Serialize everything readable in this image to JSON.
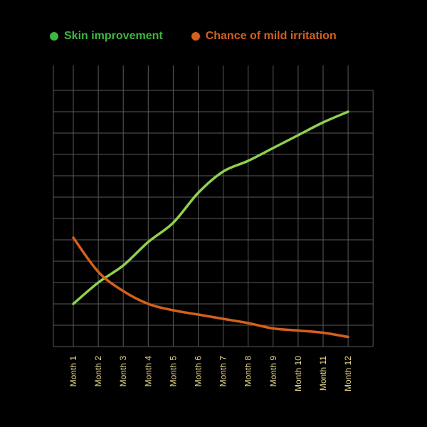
{
  "chart_data": {
    "type": "line",
    "categories": [
      "Month 1",
      "Month 2",
      "Month 3",
      "Month 4",
      "Month 5",
      "Month 6",
      "Month 7",
      "Month 8",
      "Month 9",
      "Month 10",
      "Month 11",
      "Month 12"
    ],
    "series": [
      {
        "name": "Skin improvement",
        "color": "#8fd14f",
        "legend_color": "#3cb83c",
        "values": [
          2.0,
          3.0,
          3.8,
          4.9,
          5.8,
          7.2,
          8.2,
          8.7,
          9.3,
          9.9,
          10.5,
          11.0
        ]
      },
      {
        "name": "Chance of mild irritation",
        "color": "#d4601c",
        "legend_color": "#d4601c",
        "values": [
          5.1,
          3.5,
          2.6,
          2.0,
          1.7,
          1.5,
          1.3,
          1.1,
          0.85,
          0.75,
          0.65,
          0.45
        ]
      }
    ],
    "ylim": [
      0,
      13
    ],
    "grid": true,
    "legend_position": "top-left",
    "tick_label_color": "#e8d890",
    "grid_color": "#5a5a5a"
  }
}
